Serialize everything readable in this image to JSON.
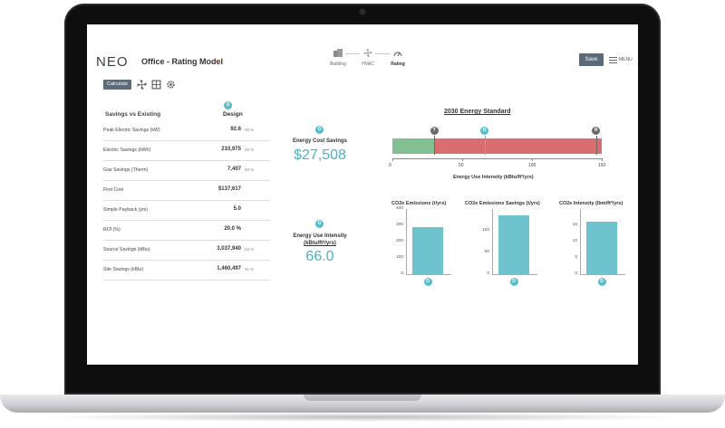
{
  "app": {
    "logo": "NEO",
    "title": "Office - Rating Model",
    "save_label": "Save",
    "menu_label": "MENU",
    "accent_color": "#4bb3c2",
    "button_color": "#5b6b7a"
  },
  "steps": [
    {
      "label": "Building",
      "icon": "building-icon"
    },
    {
      "label": "HVAC",
      "icon": "fan-icon"
    },
    {
      "label": "Rating",
      "icon": "gauge-icon"
    }
  ],
  "toolbar": {
    "calculate_label": "Calculate",
    "icons": [
      "fan-icon",
      "grid-icon",
      "gear-icon"
    ]
  },
  "table": {
    "heading": "Savings vs Existing",
    "design_badge": "D",
    "design_heading": "Design",
    "rows": [
      {
        "label": "Peak Electric Savings (kW)",
        "value": "92.6",
        "unit": "38 %"
      },
      {
        "label": "Electric Savings (kWh)",
        "value": "210,975",
        "unit": "29 %"
      },
      {
        "label": "Gas Savings (Therm)",
        "value": "7,407",
        "unit": "48 %"
      },
      {
        "label": "First Cost",
        "value": "$137,617",
        "unit": ""
      },
      {
        "label": "Simple Payback (yrs)",
        "value": "5.0",
        "unit": ""
      },
      {
        "label": "ROI (%)",
        "value": "20.0 %",
        "unit": ""
      },
      {
        "label": "Source Savings (kBtu)",
        "value": "3,037,940",
        "unit": "23 %"
      },
      {
        "label": "Site Savings (kBtu)",
        "value": "1,460,497",
        "unit": "31 %"
      }
    ]
  },
  "kpis": {
    "cost_badge": "D",
    "cost_label": "Energy Cost Savings",
    "cost_value": "$27,508",
    "eui_badge": "D",
    "eui_label_line1": "Energy Use Intensity",
    "eui_label_line2": "(kBtu/ft²/yrs)",
    "eui_value": "66.0"
  },
  "energy_standard": {
    "title": "2030 Energy Standard",
    "axis_label": "Energy Use Intensity (kBtu/ft²/yrs)",
    "ticks": [
      "0",
      "50",
      "100",
      "150"
    ],
    "markers": [
      {
        "badge": "T",
        "value": 30
      },
      {
        "badge": "D",
        "value": 66
      },
      {
        "badge": "R",
        "value": 146
      }
    ],
    "green_until": 30,
    "max": 150
  },
  "chart_data": [
    {
      "type": "bar",
      "title": "CO2e Emissions (t/yrs)",
      "categories": [
        "D"
      ],
      "values": [
        290
      ],
      "ylim": [
        0,
        400
      ],
      "yticks": [
        "400",
        "300",
        "200",
        "100",
        "0"
      ]
    },
    {
      "type": "bar",
      "title": "CO2e Emissions Savings (t/yrs)",
      "categories": [
        "D"
      ],
      "values": [
        135
      ],
      "ylim": [
        0,
        150
      ],
      "yticks": [
        "100",
        "50",
        "0"
      ]
    },
    {
      "type": "bar",
      "title": "CO2e Intensity (lbm/ft²/yrs)",
      "categories": [
        "D"
      ],
      "values": [
        16
      ],
      "ylim": [
        0,
        20
      ],
      "yticks": [
        "15",
        "10",
        "5",
        "0"
      ]
    }
  ]
}
